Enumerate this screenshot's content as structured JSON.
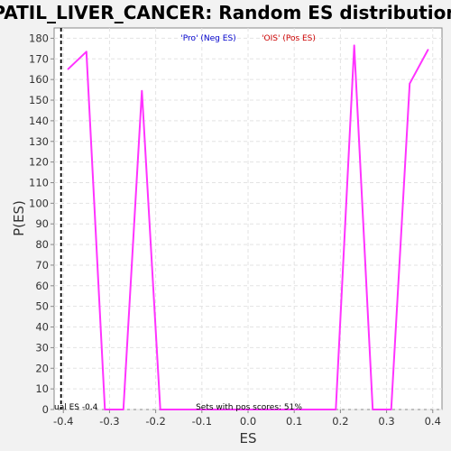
{
  "chart_data": {
    "type": "line",
    "title": "PATIL_LIVER_CANCER: Random ES distribution",
    "xlabel": "ES",
    "ylabel": "P(ES)",
    "xlim": [
      -0.42,
      0.42
    ],
    "ylim": [
      0,
      185
    ],
    "xticks": [
      -0.4,
      -0.3,
      -0.2,
      -0.1,
      0.0,
      0.1,
      0.2,
      0.3,
      0.4
    ],
    "xtick_labels": [
      "-0.4",
      "-0.3",
      "-0.2",
      "-0.1",
      "0.0",
      "0.1",
      "0.2",
      "0.3",
      "0.4"
    ],
    "yticks": [
      0,
      10,
      20,
      30,
      40,
      50,
      60,
      70,
      80,
      90,
      100,
      110,
      120,
      130,
      140,
      150,
      160,
      170,
      180
    ],
    "ytick_labels": [
      "0",
      "10",
      "20",
      "30",
      "40",
      "50",
      "60",
      "70",
      "80",
      "90",
      "100",
      "110",
      "120",
      "130",
      "140",
      "150",
      "160",
      "170",
      "180"
    ],
    "grid": true,
    "series": [
      {
        "color": "#ff33ff",
        "x": [
          -0.39,
          -0.35,
          -0.31,
          -0.27,
          -0.23,
          -0.19,
          0.19,
          0.23,
          0.27,
          0.31,
          0.35,
          0.39
        ],
        "y": [
          165,
          173.5,
          0,
          0,
          154.5,
          0,
          0,
          176.5,
          0,
          0,
          158,
          174.5
        ]
      }
    ],
    "legend": {
      "placement": "top-center",
      "entries": [
        {
          "label": "'Pro' (Neg ES)",
          "color": "#0000cc"
        },
        {
          "label": "'OIS' (Pos ES)",
          "color": "#cc0000"
        }
      ]
    },
    "annotations": {
      "actual_es_label": "ual ES -0.4",
      "actual_es_x": -0.405,
      "pos_scores_text": "Sets with pos scores: 51%"
    }
  }
}
